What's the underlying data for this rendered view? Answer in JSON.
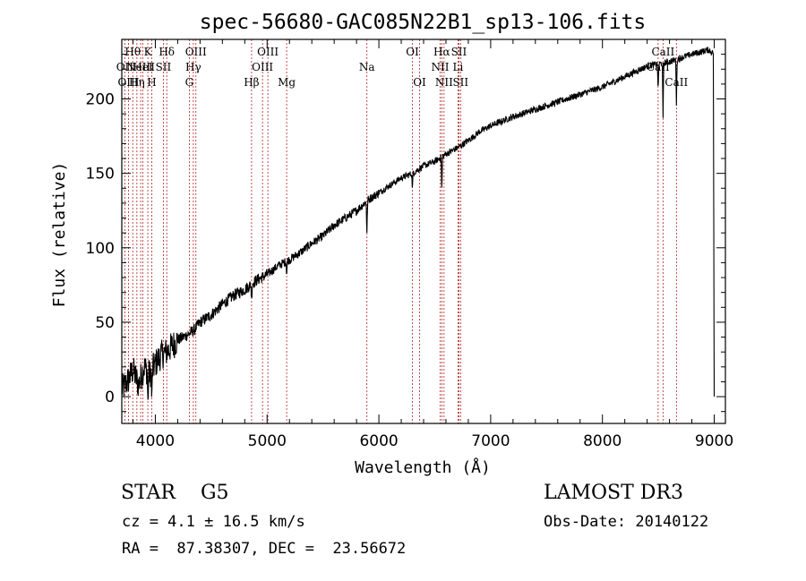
{
  "chart_data": {
    "type": "line",
    "title": "spec-56680-GAC085N22B1_sp13-106.fits",
    "xlabel": "Wavelength (Å)",
    "ylabel": "Flux (relative)",
    "xlim": [
      3700,
      9100
    ],
    "ylim": [
      -18,
      240
    ],
    "xticks": [
      4000,
      5000,
      6000,
      7000,
      8000,
      9000
    ],
    "xtick_labels": [
      "4000",
      "5000",
      "6000",
      "7000",
      "8000",
      "9000"
    ],
    "yticks": [
      0,
      50,
      100,
      150,
      200
    ],
    "ytick_labels": [
      "0",
      "50",
      "100",
      "150",
      "200"
    ],
    "grid": false,
    "series": [
      {
        "name": "spectrum",
        "x": [
          3700,
          3750,
          3800,
          3850,
          3900,
          3950,
          4000,
          4050,
          4100,
          4150,
          4200,
          4250,
          4300,
          4350,
          4400,
          4500,
          4600,
          4700,
          4800,
          4900,
          5000,
          5100,
          5200,
          5300,
          5400,
          5500,
          5600,
          5700,
          5800,
          5900,
          6000,
          6100,
          6200,
          6300,
          6400,
          6500,
          6600,
          6700,
          6800,
          6900,
          7000,
          7200,
          7400,
          7600,
          7800,
          8000,
          8200,
          8400,
          8600,
          8800,
          8950,
          9000
        ],
        "values": [
          5,
          10,
          18,
          8,
          20,
          15,
          22,
          28,
          30,
          34,
          38,
          40,
          42,
          45,
          50,
          55,
          62,
          68,
          72,
          78,
          82,
          88,
          92,
          97,
          103,
          108,
          115,
          120,
          125,
          132,
          137,
          142,
          147,
          150,
          155,
          158,
          163,
          167,
          172,
          178,
          182,
          188,
          193,
          198,
          203,
          208,
          215,
          222,
          225,
          230,
          233,
          230
        ]
      }
    ],
    "absorption_dips": [
      {
        "x": 3934,
        "depth": 22
      },
      {
        "x": 3969,
        "depth": 20
      },
      {
        "x": 4861,
        "depth": 10
      },
      {
        "x": 5175,
        "depth": 8
      },
      {
        "x": 5893,
        "depth": 22
      },
      {
        "x": 6300,
        "depth": 10
      },
      {
        "x": 6563,
        "depth": 22
      },
      {
        "x": 8498,
        "depth": 18
      },
      {
        "x": 8542,
        "depth": 38
      },
      {
        "x": 8662,
        "depth": 30
      }
    ],
    "reference_lines": [
      {
        "x": 3727,
        "label": "OII",
        "row": 2
      },
      {
        "x": 3760,
        "label": "OIII",
        "row": 3
      },
      {
        "x": 3798,
        "label": "Hθ",
        "row": 1
      },
      {
        "x": 3835,
        "label": "Hη",
        "row": 3
      },
      {
        "x": 3869,
        "label": "NeIII",
        "row": 2
      },
      {
        "x": 3889,
        "label": "HeI",
        "row": 2
      },
      {
        "x": 3933,
        "label": "K",
        "row": 1
      },
      {
        "x": 3968,
        "label": "H",
        "row": 3
      },
      {
        "x": 4072,
        "label": "SII",
        "row": 2
      },
      {
        "x": 4102,
        "label": "Hδ",
        "row": 1
      },
      {
        "x": 4304,
        "label": "G",
        "row": 3
      },
      {
        "x": 4340,
        "label": "Hγ",
        "row": 2
      },
      {
        "x": 4363,
        "label": "OIII",
        "row": 1
      },
      {
        "x": 4861,
        "label": "Hβ",
        "row": 3
      },
      {
        "x": 4959,
        "label": "OIII",
        "row": 2
      },
      {
        "x": 5007,
        "label": "OIII",
        "row": 1
      },
      {
        "x": 5175,
        "label": "Mg",
        "row": 3
      },
      {
        "x": 5893,
        "label": "Na",
        "row": 2
      },
      {
        "x": 6300,
        "label": "OI",
        "row": 1
      },
      {
        "x": 6364,
        "label": "OI",
        "row": 3
      },
      {
        "x": 6548,
        "label": "NII",
        "row": 2
      },
      {
        "x": 6563,
        "label": "Hα",
        "row": 1
      },
      {
        "x": 6583,
        "label": "NII",
        "row": 3
      },
      {
        "x": 6708,
        "label": "Li",
        "row": 2
      },
      {
        "x": 6716,
        "label": "SII",
        "row": 1
      },
      {
        "x": 6731,
        "label": "SII",
        "row": 3
      },
      {
        "x": 8498,
        "label": "CaII",
        "row": 2
      },
      {
        "x": 8542,
        "label": "CaII",
        "row": 1
      },
      {
        "x": 8662,
        "label": "CaII",
        "row": 3
      }
    ]
  },
  "info": {
    "object_class": "STAR    G5",
    "survey": "LAMOST DR3",
    "redshift_line": "cz = 4.1 ± 16.5 km/s",
    "obs_date_line": "Obs-Date: 20140122",
    "coords_line": "RA =  87.38307, DEC =  23.56672"
  }
}
